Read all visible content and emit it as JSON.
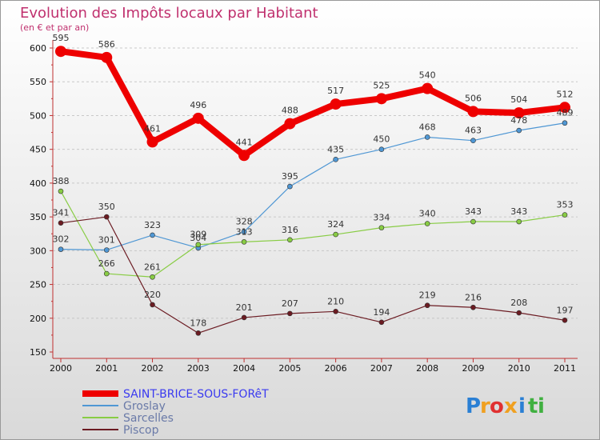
{
  "chart_data": {
    "type": "line",
    "title": "Evolution des Impôts locaux par Habitant",
    "subtitle": "(en € et par an)",
    "categories": [
      "2000",
      "2001",
      "2002",
      "2003",
      "2004",
      "2005",
      "2006",
      "2007",
      "2008",
      "2009",
      "2010",
      "2011"
    ],
    "ylim": [
      150,
      600
    ],
    "yticks": [
      150,
      200,
      250,
      300,
      350,
      400,
      450,
      500,
      550,
      600
    ],
    "grid": "horizontal dashed",
    "legend_position": "bottom-left",
    "series": [
      {
        "name": "SAINT-BRICE-SOUS-FORêT",
        "color": "#ee0000",
        "weight": "heavy",
        "values": [
          595,
          586,
          461,
          496,
          441,
          488,
          517,
          525,
          540,
          506,
          504,
          512
        ]
      },
      {
        "name": "Groslay",
        "color": "#4f97d4",
        "weight": "thin",
        "values": [
          302,
          301,
          323,
          304,
          328,
          395,
          435,
          450,
          468,
          463,
          478,
          489
        ]
      },
      {
        "name": "Sarcelles",
        "color": "#88cc44",
        "weight": "thin",
        "values": [
          388,
          266,
          261,
          309,
          313,
          316,
          324,
          334,
          340,
          343,
          343,
          353
        ]
      },
      {
        "name": "Piscop",
        "color": "#6b1b22",
        "weight": "thin",
        "values": [
          341,
          350,
          220,
          178,
          201,
          207,
          210,
          194,
          219,
          216,
          208,
          197
        ]
      }
    ]
  },
  "brand": {
    "letters": [
      "P",
      "r",
      "o",
      "x",
      "i",
      "t",
      "i"
    ],
    "colors": [
      "#2a7fd4",
      "#f0a020",
      "#e03030",
      "#f0a020",
      "#2a7fd4",
      "#40b040",
      "#40b040"
    ]
  }
}
